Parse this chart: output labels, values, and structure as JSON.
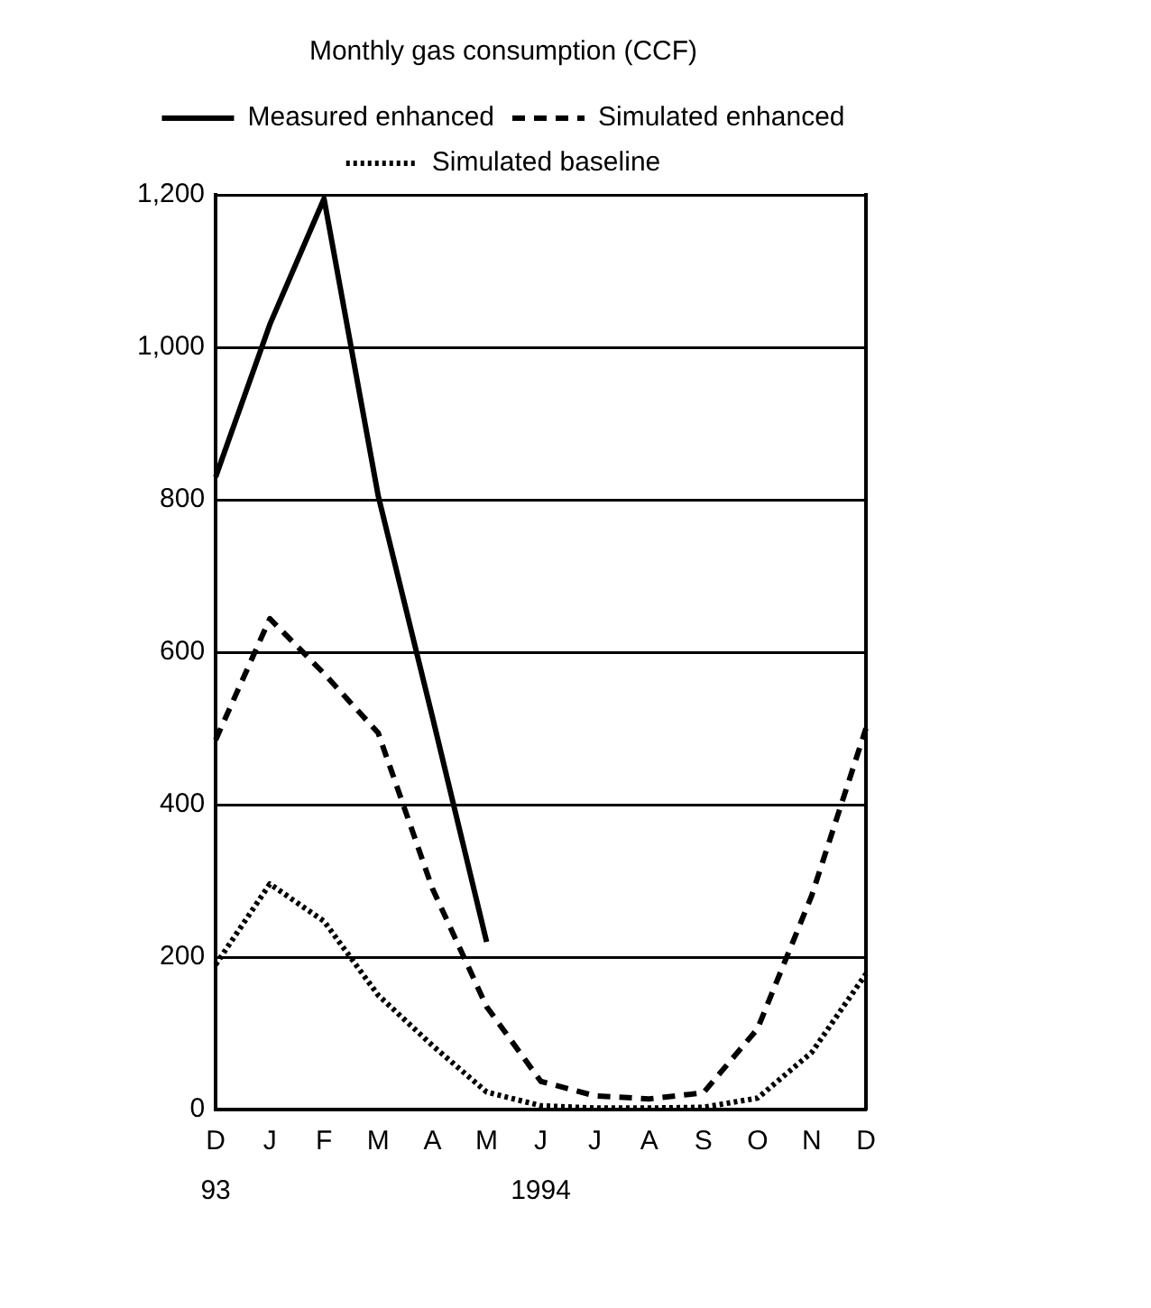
{
  "chart_data": {
    "type": "line",
    "title": "Monthly gas consumption (CCF)",
    "categories": [
      "D",
      "J",
      "F",
      "M",
      "A",
      "M",
      "J",
      "J",
      "A",
      "S",
      "O",
      "N",
      "D"
    ],
    "series": [
      {
        "name": "Measured enhanced",
        "color": "#000000",
        "line_style": "solid",
        "values": [
          830,
          1030,
          1195,
          805,
          515,
          220,
          null,
          null,
          null,
          null,
          null,
          null,
          null
        ]
      },
      {
        "name": "Simulated enhanced",
        "color": "#000000",
        "line_style": "dashed",
        "values": [
          485,
          644,
          572,
          494,
          290,
          135,
          37,
          18,
          14,
          22,
          106,
          281,
          500
        ]
      },
      {
        "name": "Simulated baseline",
        "color": "#000000",
        "line_style": "dotted",
        "values": [
          190,
          296,
          247,
          150,
          84,
          23,
          5,
          2,
          2,
          3,
          15,
          75,
          178
        ]
      }
    ],
    "ylim": [
      0,
      1200
    ],
    "yticks": [
      {
        "value": 0,
        "label": "0"
      },
      {
        "value": 200,
        "label": "200"
      },
      {
        "value": 400,
        "label": "400"
      },
      {
        "value": 600,
        "label": "600"
      },
      {
        "value": 800,
        "label": "800"
      },
      {
        "value": 1000,
        "label": "1,000"
      },
      {
        "value": 1200,
        "label": "1,200"
      }
    ],
    "grid": "y",
    "legend": "top",
    "marker": "none",
    "annotations": [
      "93",
      "1994"
    ]
  }
}
